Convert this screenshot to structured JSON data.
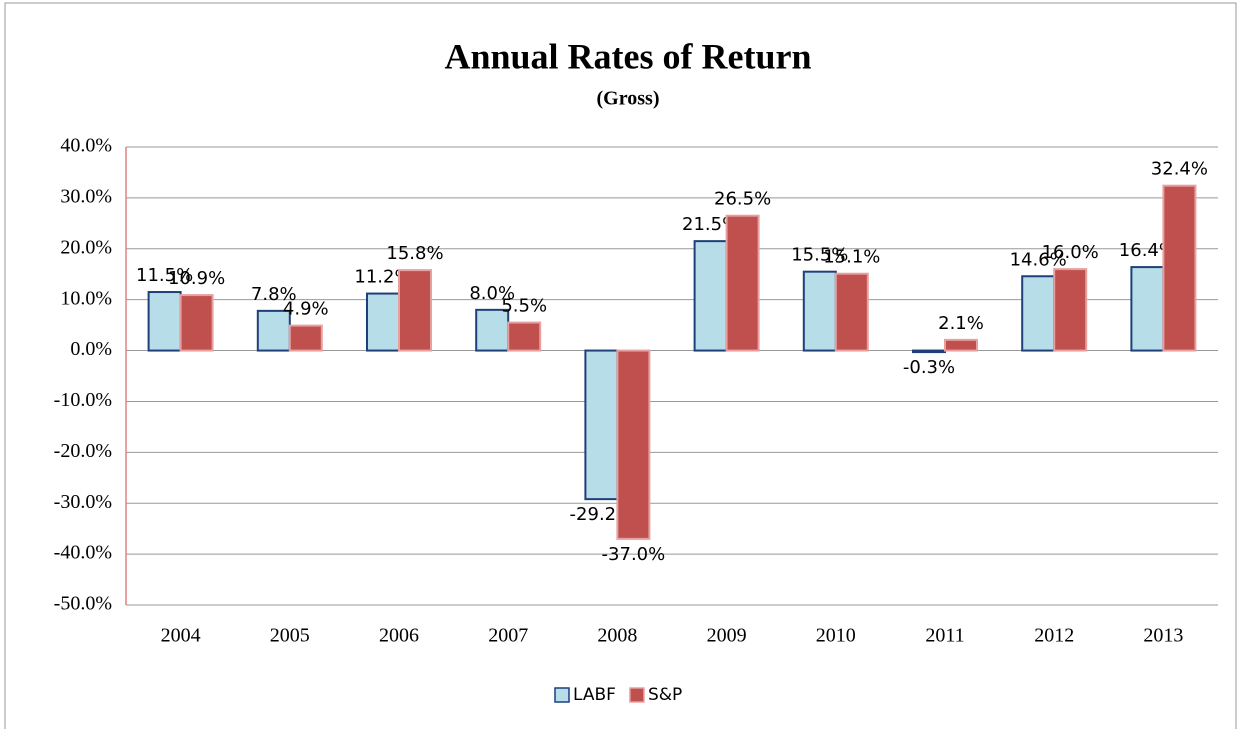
{
  "chart_data": {
    "type": "bar",
    "title": "Annual Rates of Return",
    "subtitle": "(Gross)",
    "categories": [
      "2004",
      "2005",
      "2006",
      "2007",
      "2008",
      "2009",
      "2010",
      "2011",
      "2012",
      "2013"
    ],
    "series": [
      {
        "name": "LABF",
        "color": "#b7dde8",
        "edgecolor": "#1f3f7a",
        "values": [
          11.5,
          7.8,
          11.2,
          8.0,
          -29.2,
          21.5,
          15.5,
          -0.3,
          14.6,
          16.4
        ],
        "value_labels": [
          "11.5%",
          "7.8%",
          "11.2%",
          "8.0%",
          "-29.2%",
          "21.5%",
          "15.5%",
          "-0.3%",
          "14.6%",
          "16.4%"
        ]
      },
      {
        "name": "S&P",
        "color": "#c0504d",
        "edgecolor": "#e6a0a0",
        "values": [
          10.9,
          4.9,
          15.8,
          5.5,
          -37.0,
          26.5,
          15.1,
          2.1,
          16.0,
          32.4
        ],
        "value_labels": [
          "10.9%",
          "4.9%",
          "15.8%",
          "5.5%",
          "-37.0%",
          "26.5%",
          "15.1%",
          "2.1%",
          "16.0%",
          "32.4%"
        ]
      }
    ],
    "ylim": [
      -50,
      40
    ],
    "yticks": [
      {
        "value": -50,
        "label": "-50.0%"
      },
      {
        "value": -40,
        "label": "-40.0%"
      },
      {
        "value": -30,
        "label": "-30.0%"
      },
      {
        "value": -20,
        "label": "-20.0%"
      },
      {
        "value": -10,
        "label": "-10.0%"
      },
      {
        "value": 0,
        "label": "0.0%"
      },
      {
        "value": 10,
        "label": "10.0%"
      },
      {
        "value": 20,
        "label": "20.0%"
      },
      {
        "value": 30,
        "label": "30.0%"
      },
      {
        "value": 40,
        "label": "40.0%"
      }
    ],
    "grid": true,
    "legend": "bottom"
  }
}
